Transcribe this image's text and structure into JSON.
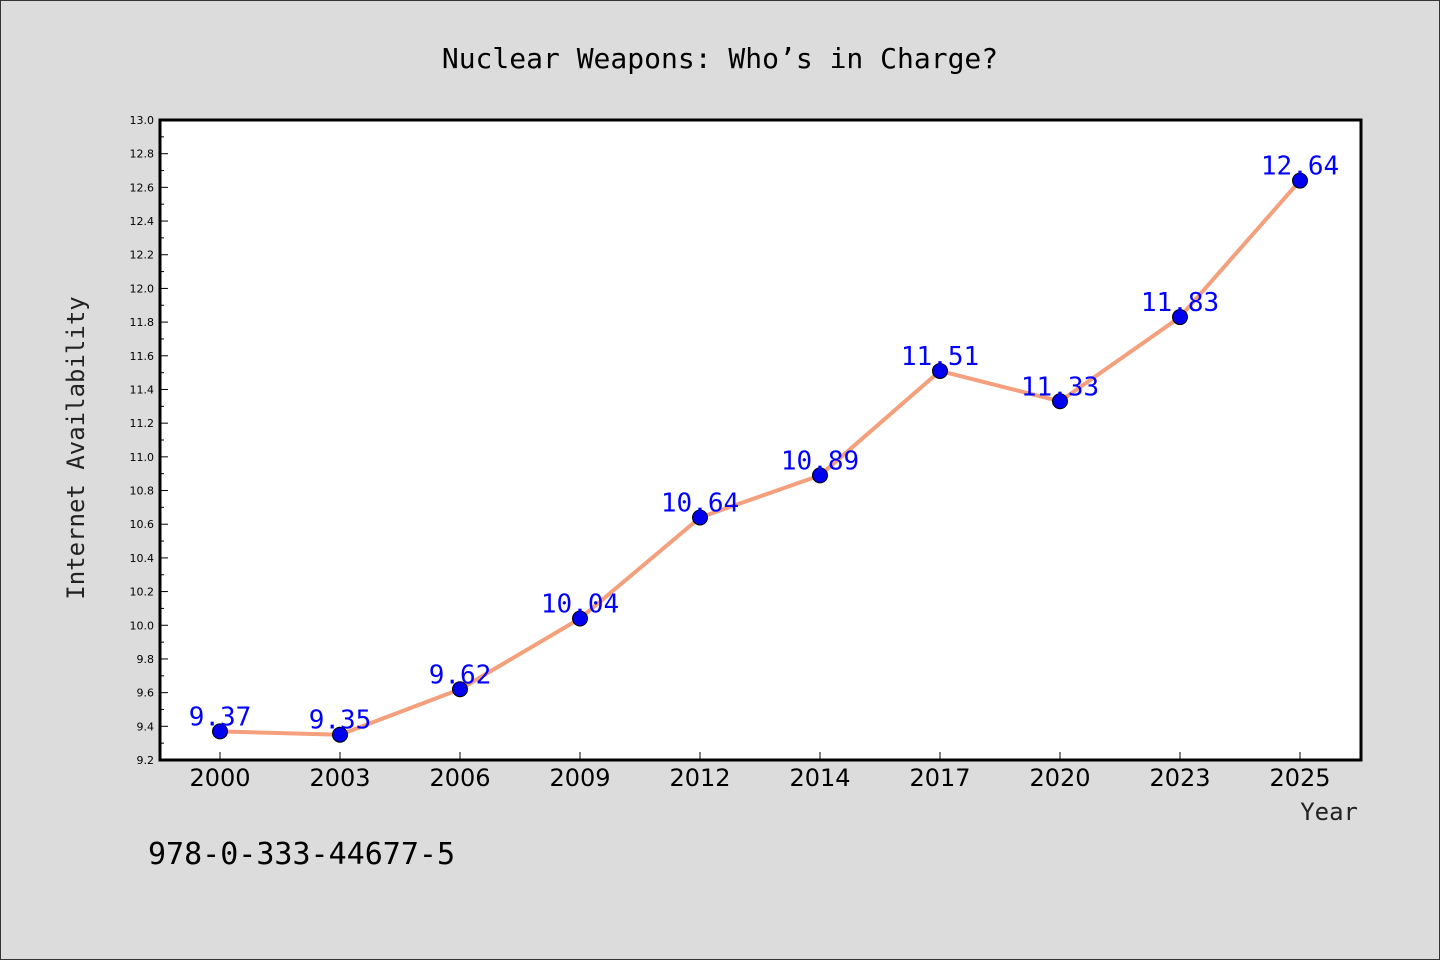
{
  "chart_data": {
    "type": "line",
    "title": "Nuclear Weapons: Who’s in Charge?",
    "xlabel": "Year",
    "ylabel": "Internet Availability",
    "categories": [
      "2000",
      "2003",
      "2006",
      "2009",
      "2012",
      "2014",
      "2017",
      "2020",
      "2023",
      "2025"
    ],
    "series": [
      {
        "values": [
          9.37,
          9.35,
          9.62,
          10.04,
          10.64,
          10.89,
          11.51,
          11.33,
          11.83,
          12.64
        ]
      }
    ],
    "data_labels": [
      "9.37",
      "9.35",
      "9.62",
      "10.04",
      "10.64",
      "10.89",
      "11.51",
      "11.33",
      "11.83",
      "12.64"
    ],
    "ylim": [
      9.2,
      13.0
    ],
    "yticks": [
      "9.2",
      "9.4",
      "9.6",
      "9.8",
      "10.0",
      "10.2",
      "10.4",
      "10.6",
      "10.8",
      "11.0",
      "11.2",
      "11.4",
      "11.6",
      "11.8",
      "12.0",
      "12.2",
      "12.4",
      "12.6",
      "12.8",
      "13.0"
    ],
    "line_color": "#f4a07c",
    "marker_color": "#0000ee",
    "label_color": "#0000ff",
    "grid": false
  },
  "footer": {
    "isbn": "978-0-333-44677-5"
  }
}
